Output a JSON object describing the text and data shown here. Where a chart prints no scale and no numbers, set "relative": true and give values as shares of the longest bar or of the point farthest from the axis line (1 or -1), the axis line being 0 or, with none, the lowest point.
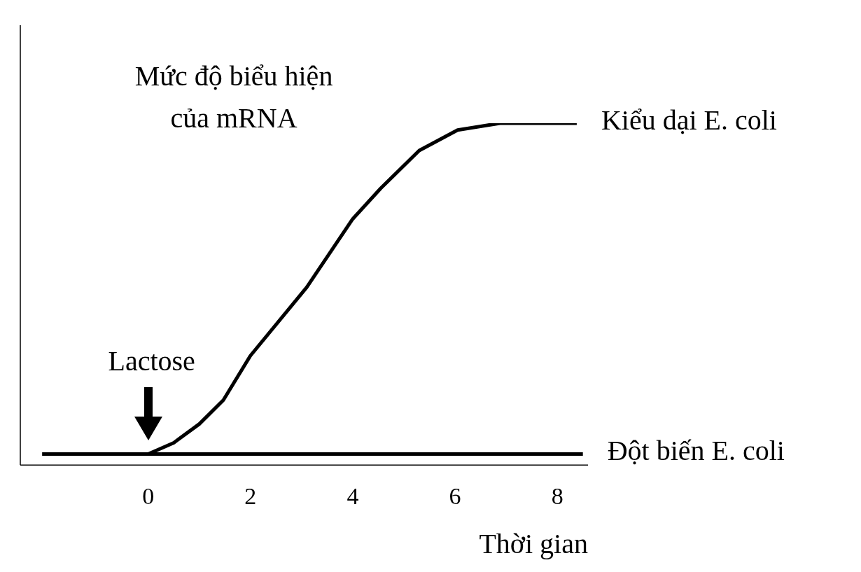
{
  "chart_data": {
    "type": "line",
    "relative": true,
    "ylabel": "Mức độ biểu hiện của mRNA",
    "xlabel": "Thời gian",
    "xlim": [
      -2.5,
      8.6
    ],
    "xticks": [
      0,
      2,
      4,
      6,
      8
    ],
    "series": [
      {
        "name": "Kiểu dại E. coli",
        "color": "#000000",
        "x": [
          -2.07,
          0,
          0.5,
          1,
          1.47,
          2,
          3.1,
          4,
          4.55,
          5.3,
          6.05,
          6.88,
          8.38
        ],
        "values": [
          0.032,
          0.032,
          0.065,
          0.12,
          0.19,
          0.32,
          0.52,
          0.72,
          0.81,
          0.92,
          0.98,
          1,
          1
        ]
      },
      {
        "name": "Đột biến E. coli",
        "color": "#000000",
        "x": [
          -2.07,
          8.5
        ],
        "values": [
          0.032,
          0.032
        ]
      }
    ],
    "annotations": [
      {
        "text": "Lactose",
        "x": 0,
        "y": 0.032
      }
    ]
  }
}
